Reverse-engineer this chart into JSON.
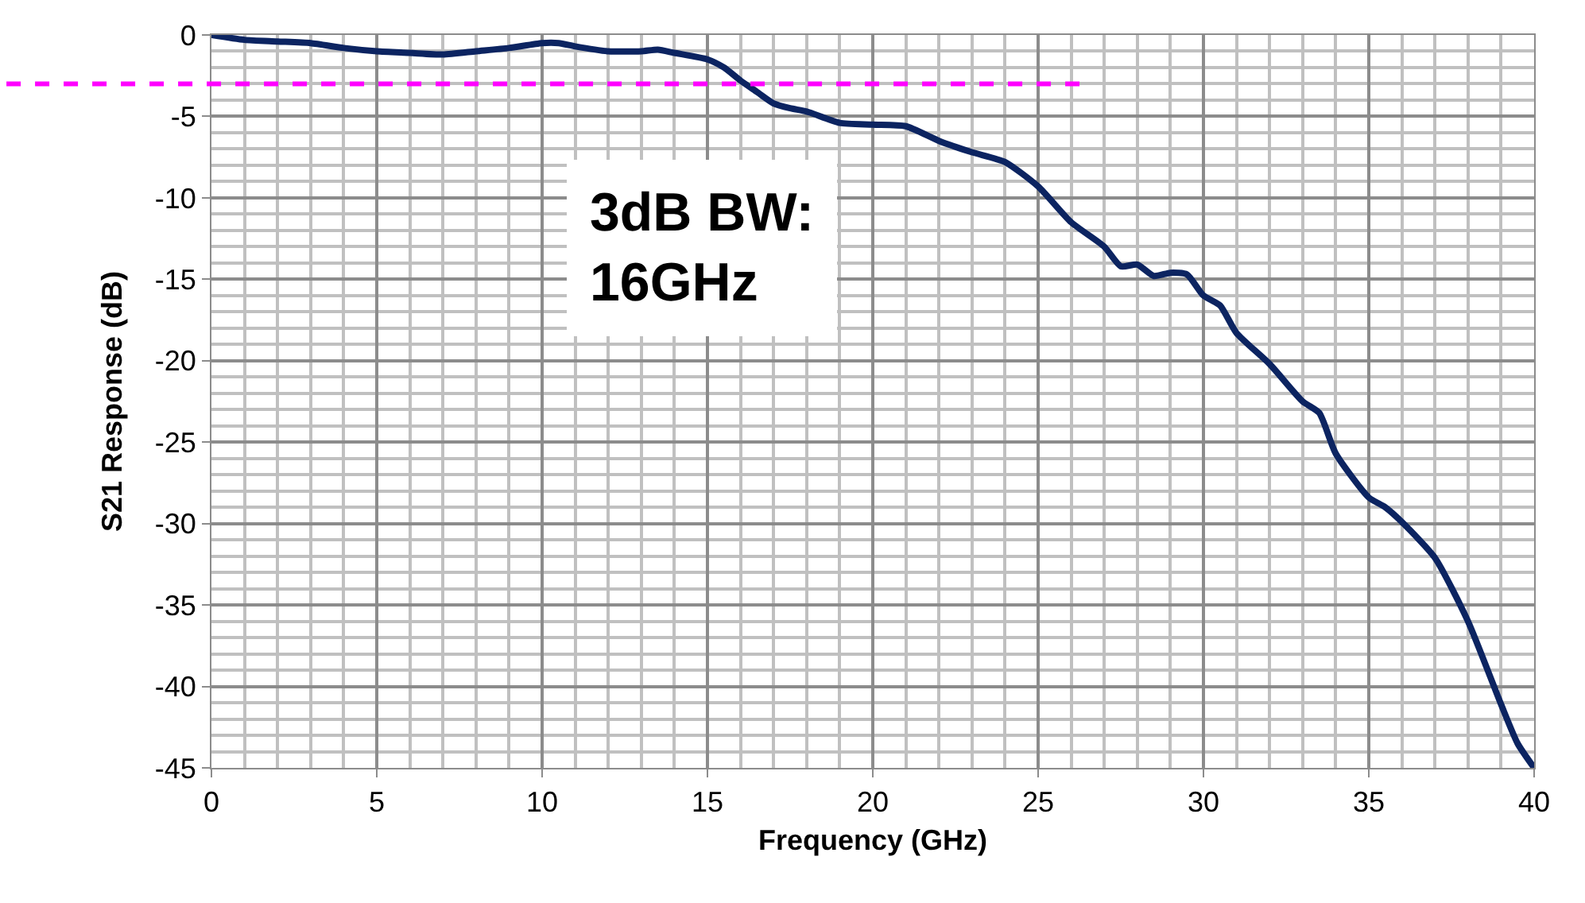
{
  "chart_data": {
    "type": "line",
    "xlabel": "Frequency (GHz)",
    "ylabel": "S21 Response (dB)",
    "xlim": [
      0,
      40
    ],
    "xticks": [
      0,
      5,
      10,
      15,
      20,
      25,
      30,
      35,
      40
    ],
    "ylim": [
      -45,
      0
    ],
    "yticks": [
      -45,
      -40,
      -35,
      -30,
      -25,
      -20,
      -15,
      -10,
      -5,
      0
    ],
    "grid": true,
    "marker": "none",
    "line_style": "solid",
    "series": [
      {
        "color": "#0c2461",
        "x": [
          0,
          1,
          2,
          3,
          4,
          5,
          6,
          7,
          8,
          9,
          10,
          10.5,
          11,
          12,
          13,
          13.5,
          14,
          15,
          15.5,
          16,
          16.5,
          17,
          17.5,
          18,
          19,
          20,
          21,
          22,
          23,
          24,
          25,
          26,
          27,
          27.5,
          28,
          28.5,
          29,
          29.5,
          30,
          30.5,
          31,
          32,
          33,
          33.5,
          34,
          35,
          35.5,
          36,
          37,
          38,
          39,
          39.5,
          40
        ],
        "values": [
          0,
          -0.3,
          -0.4,
          -0.5,
          -0.8,
          -1.0,
          -1.1,
          -1.2,
          -1.0,
          -0.8,
          -0.5,
          -0.5,
          -0.7,
          -1.0,
          -1.0,
          -0.9,
          -1.1,
          -1.5,
          -2.0,
          -2.8,
          -3.5,
          -4.2,
          -4.5,
          -4.7,
          -5.4,
          -5.5,
          -5.6,
          -6.5,
          -7.2,
          -7.8,
          -9.3,
          -11.5,
          -13.0,
          -14.2,
          -14.1,
          -14.8,
          -14.6,
          -14.7,
          -16.0,
          -16.6,
          -18.3,
          -20.2,
          -22.5,
          -23.2,
          -25.7,
          -28.4,
          -29.0,
          -29.9,
          -32.1,
          -36.0,
          -41.1,
          -43.5,
          -45.0
        ]
      }
    ],
    "ref_lines": [
      {
        "axis": "y",
        "value": -3,
        "color": "#ff00ff",
        "line_style": "dashed"
      }
    ],
    "annotations": [
      "3dB BW:\n16GHz"
    ]
  }
}
